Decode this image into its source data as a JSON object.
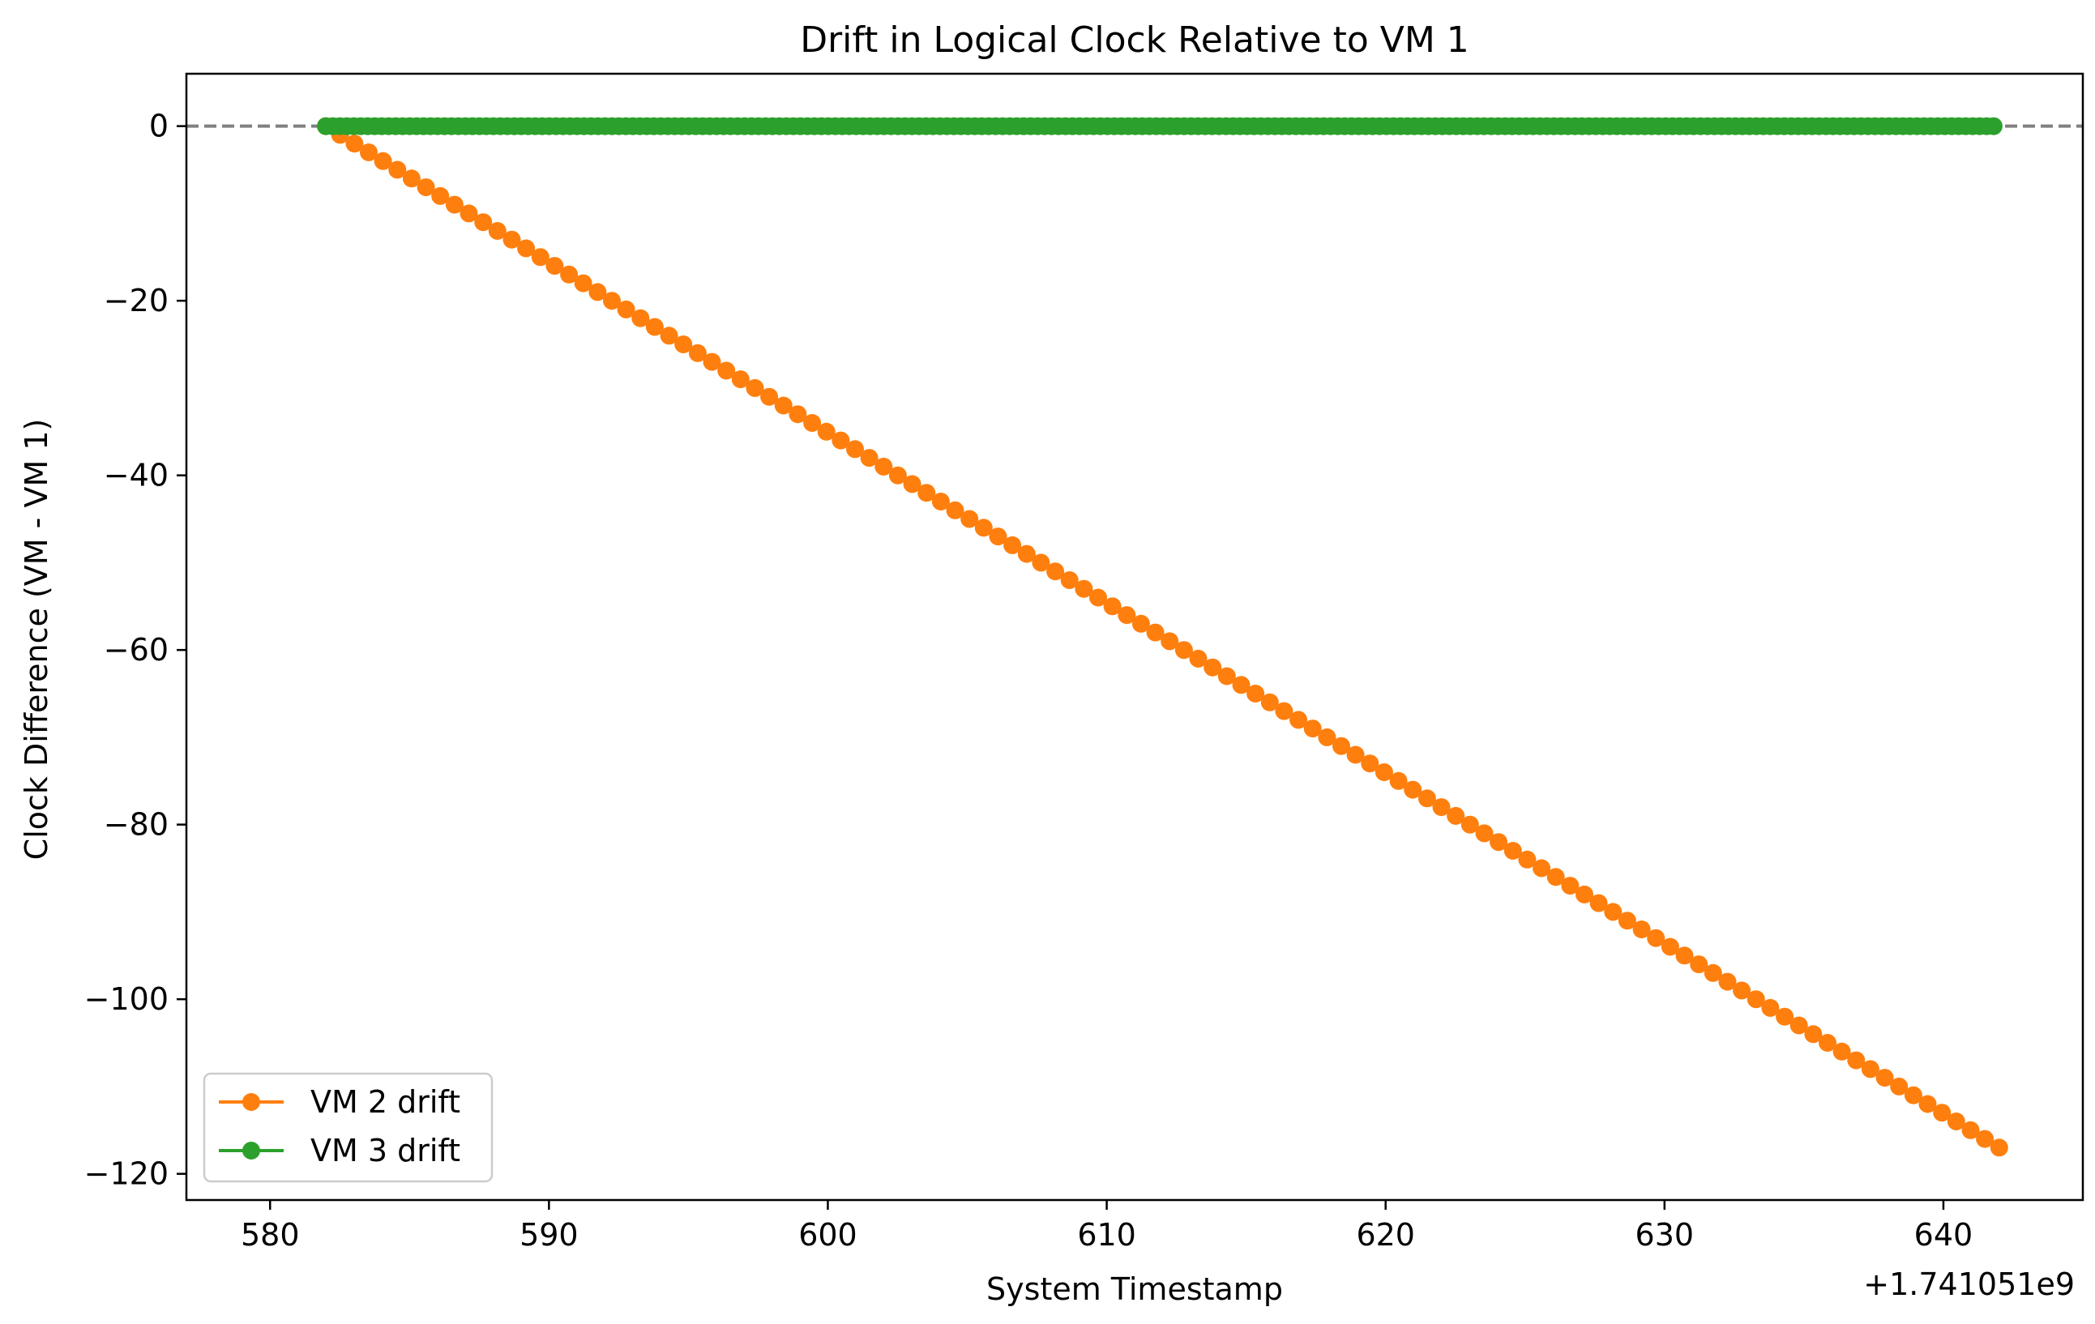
{
  "chart_data": {
    "type": "line",
    "title": "Drift in Logical Clock Relative to VM 1",
    "xlabel": "System Timestamp",
    "ylabel": "Clock Difference (VM - VM 1)",
    "x_offset_label": "+1.741051e9",
    "xlim": [
      577,
      645
    ],
    "ylim": [
      -123,
      6
    ],
    "xticks": [
      {
        "value": 580,
        "label": "580"
      },
      {
        "value": 590,
        "label": "590"
      },
      {
        "value": 600,
        "label": "600"
      },
      {
        "value": 610,
        "label": "610"
      },
      {
        "value": 620,
        "label": "620"
      },
      {
        "value": 630,
        "label": "630"
      },
      {
        "value": 640,
        "label": "640"
      }
    ],
    "yticks": [
      {
        "value": 0,
        "label": "0"
      },
      {
        "value": -20,
        "label": "−20"
      },
      {
        "value": -40,
        "label": "−40"
      },
      {
        "value": -60,
        "label": "−60"
      },
      {
        "value": -80,
        "label": "−80"
      },
      {
        "value": -100,
        "label": "−100"
      },
      {
        "value": -120,
        "label": "−120"
      }
    ],
    "reference_line": {
      "y": 0,
      "style": "dashed",
      "color": "#808080"
    },
    "legend_position": "lower-left",
    "series": [
      {
        "name": "VM 2 drift",
        "color": "#ff7f0e",
        "marker": "circle",
        "x_start": 582.0,
        "x_end": 642.0,
        "y_start": 0,
        "y_end": -117,
        "points": 118,
        "trend": "linear"
      },
      {
        "name": "VM 3 drift",
        "color": "#2ca02c",
        "marker": "circle",
        "x_start": 582.0,
        "x_end": 641.8,
        "y_start": 0,
        "y_end": 0,
        "points": 240,
        "trend": "flat"
      }
    ]
  }
}
